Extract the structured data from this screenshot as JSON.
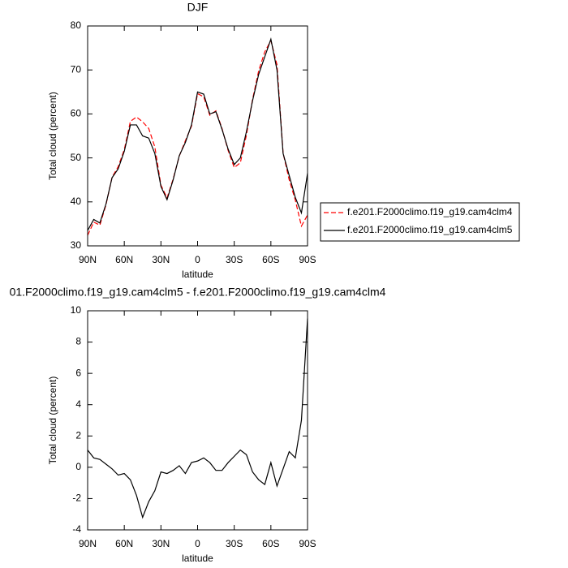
{
  "chart_data": [
    {
      "type": "line",
      "title": "DJF",
      "x_label": "latitude",
      "y_label": "Total cloud (percent)",
      "x": [
        90,
        85,
        80,
        75,
        70,
        65,
        60,
        55,
        50,
        45,
        40,
        35,
        30,
        25,
        20,
        15,
        10,
        5,
        0,
        -5,
        -10,
        -15,
        -20,
        -25,
        -30,
        -35,
        -40,
        -45,
        -50,
        -55,
        -60,
        -65,
        -70,
        -75,
        -80,
        -85,
        -90
      ],
      "xlim": [
        90,
        -90
      ],
      "xticks": [
        {
          "value": 90,
          "label": "90N"
        },
        {
          "value": 60,
          "label": "60N"
        },
        {
          "value": 30,
          "label": "30N"
        },
        0,
        {
          "value": -30,
          "label": "30S"
        },
        {
          "value": -60,
          "label": "60S"
        },
        {
          "value": -90,
          "label": "90S"
        }
      ],
      "ylim": [
        30,
        80
      ],
      "yticks": [
        30,
        40,
        50,
        60,
        70,
        80
      ],
      "legend": "right",
      "series": [
        {
          "name": "f.e201.F2000climo.f19_g19.cam4clm4",
          "color": "#ff0000",
          "line_style": "dashed",
          "values": [
            32.4,
            35.4,
            34.7,
            39.3,
            45.6,
            48,
            51.9,
            58.3,
            59.3,
            58.2,
            56.7,
            52.5,
            43.8,
            40.9,
            45.2,
            50.4,
            53.9,
            57.2,
            64.6,
            63.9,
            59.7,
            60.7,
            56.7,
            51.7,
            47.8,
            48.9,
            55.2,
            63.3,
            69.8,
            74.1,
            76.7,
            71.2,
            51.1,
            45,
            40.4,
            34.5,
            37
          ]
        },
        {
          "name": "f.e201.F2000climo.f19_g19.cam4clm5",
          "color": "#000000",
          "line_style": "solid",
          "values": [
            33.5,
            36,
            35.2,
            39.5,
            45.5,
            47.5,
            51.5,
            57.5,
            57.5,
            55,
            54.5,
            51,
            43.5,
            40.5,
            45,
            50.5,
            53.5,
            57.5,
            65,
            64.5,
            60,
            60.5,
            56.5,
            52,
            48.5,
            50,
            56,
            63,
            69,
            73,
            77,
            70,
            51,
            46,
            41,
            37.5,
            46.5
          ]
        }
      ]
    },
    {
      "type": "line",
      "title": "01.F2000climo.f19_g19.cam4clm5 - f.e201.F2000climo.f19_g19.cam4clm4",
      "x_label": "latitude",
      "y_label": "Total cloud (percent)",
      "x": [
        90,
        85,
        80,
        75,
        70,
        65,
        60,
        55,
        50,
        45,
        40,
        35,
        30,
        25,
        20,
        15,
        10,
        5,
        0,
        -5,
        -10,
        -15,
        -20,
        -25,
        -30,
        -35,
        -40,
        -45,
        -50,
        -55,
        -60,
        -65,
        -70,
        -75,
        -80,
        -85,
        -90
      ],
      "xlim": [
        90,
        -90
      ],
      "xticks": [
        {
          "value": 90,
          "label": "90N"
        },
        {
          "value": 60,
          "label": "60N"
        },
        {
          "value": 30,
          "label": "30N"
        },
        0,
        {
          "value": -30,
          "label": "30S"
        },
        {
          "value": -60,
          "label": "60S"
        },
        {
          "value": -90,
          "label": "90S"
        }
      ],
      "ylim": [
        -4,
        10
      ],
      "yticks": [
        -4,
        -2,
        0,
        2,
        4,
        6,
        8,
        10
      ],
      "series": [
        {
          "color": "#000000",
          "line_style": "solid",
          "values": [
            1.1,
            0.6,
            0.5,
            0.2,
            -0.1,
            -0.5,
            -0.4,
            -0.8,
            -1.8,
            -3.2,
            -2.2,
            -1.5,
            -0.3,
            -0.4,
            -0.2,
            0.1,
            -0.4,
            0.3,
            0.4,
            0.6,
            0.3,
            -0.2,
            -0.2,
            0.3,
            0.7,
            1.1,
            0.8,
            -0.3,
            -0.8,
            -1.1,
            0.3,
            -1.2,
            -0.1,
            1,
            0.6,
            3,
            9.5
          ]
        }
      ]
    }
  ]
}
